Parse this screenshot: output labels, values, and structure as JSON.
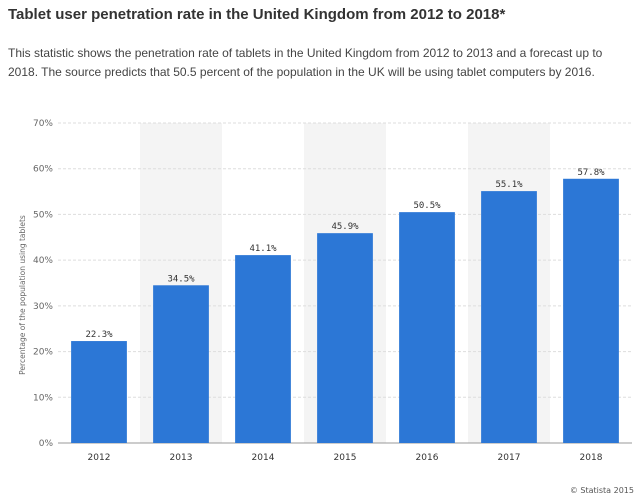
{
  "header": {
    "title": "Tablet user penetration rate in the United Kingdom from 2012 to 2018*",
    "description": "This statistic shows the penetration rate of tablets in the United Kingdom from 2012 to 2013 and a forecast up to 2018. The source predicts that 50.5 percent of the population in the UK will be using tablet computers by 2016."
  },
  "chart_data": {
    "type": "bar",
    "title": "Tablet user penetration rate in the United Kingdom from 2012 to 2018*",
    "categories": [
      "2012",
      "2013",
      "2014",
      "2015",
      "2016",
      "2017",
      "2018"
    ],
    "values": [
      22.3,
      34.5,
      41.1,
      45.9,
      50.5,
      55.1,
      57.8
    ],
    "value_labels": [
      "22.3%",
      "34.5%",
      "41.1%",
      "45.9%",
      "50.5%",
      "55.1%",
      "57.8%"
    ],
    "xlabel": "",
    "ylabel": "Percentage of the population using tablets",
    "ylim": [
      0,
      70
    ],
    "yticks": [
      0,
      10,
      20,
      30,
      40,
      50,
      60,
      70
    ],
    "ytick_labels": [
      "0%",
      "10%",
      "20%",
      "30%",
      "40%",
      "50%",
      "60%",
      "70%"
    ],
    "grid": true,
    "bar_color": "#2c77d6",
    "alt_band_color": "#f4f4f4"
  },
  "footer": {
    "credit": "© Statista 2015"
  }
}
